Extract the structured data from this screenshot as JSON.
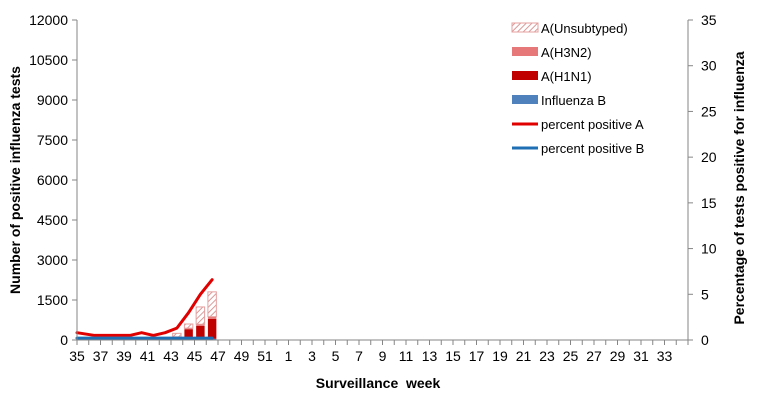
{
  "chart_data": {
    "type": "bar",
    "subtype": "stacked bar with dual-axis line overlay",
    "title": "",
    "xlabel": "Surveillance  week",
    "ylabel": "Number of positive influenza tests",
    "y2label": "Percentage of tests positive for influenza",
    "ylim": [
      0,
      12000
    ],
    "y2lim": [
      0,
      35
    ],
    "yticks": [
      0,
      1500,
      3000,
      4500,
      6000,
      7500,
      9000,
      10500,
      12000
    ],
    "y2ticks": [
      0,
      5,
      10,
      15,
      20,
      25,
      30,
      35
    ],
    "grid": false,
    "legend_position": "upper right, inside plot",
    "categories": [
      35,
      36,
      37,
      38,
      39,
      40,
      41,
      42,
      43,
      44,
      45,
      46,
      47,
      48,
      49,
      50,
      51,
      52,
      1,
      2,
      3,
      4,
      5,
      6,
      7,
      8,
      9,
      10,
      11,
      12,
      13,
      14,
      15,
      16,
      17,
      18,
      19,
      20,
      21,
      22,
      23,
      24,
      25,
      26,
      27,
      28,
      29,
      30,
      31,
      32,
      33,
      34
    ],
    "xtick_labels": [
      "35",
      "37",
      "39",
      "41",
      "43",
      "45",
      "47",
      "49",
      "51",
      "1",
      "3",
      "5",
      "7",
      "9",
      "11",
      "13",
      "15",
      "17",
      "19",
      "21",
      "23",
      "25",
      "27",
      "29",
      "31",
      "33"
    ],
    "series": [
      {
        "name": "Influenza B",
        "kind": "bar",
        "color": "#4f81bd",
        "axis": "left",
        "values": [
          20,
          15,
          15,
          15,
          15,
          20,
          20,
          25,
          30,
          35,
          40,
          45,
          null,
          null,
          null,
          null,
          null,
          null,
          null,
          null,
          null,
          null,
          null,
          null,
          null,
          null,
          null,
          null,
          null,
          null,
          null,
          null,
          null,
          null,
          null,
          null,
          null,
          null,
          null,
          null,
          null,
          null,
          null,
          null,
          null,
          null,
          null,
          null,
          null,
          null,
          null,
          null
        ]
      },
      {
        "name": "A(H1N1)",
        "kind": "bar",
        "color": "#c00000",
        "axis": "left",
        "values": [
          5,
          5,
          5,
          5,
          5,
          10,
          10,
          20,
          60,
          370,
          490,
          750,
          null,
          null,
          null,
          null,
          null,
          null,
          null,
          null,
          null,
          null,
          null,
          null,
          null,
          null,
          null,
          null,
          null,
          null,
          null,
          null,
          null,
          null,
          null,
          null,
          null,
          null,
          null,
          null,
          null,
          null,
          null,
          null,
          null,
          null,
          null,
          null,
          null,
          null,
          null,
          null
        ]
      },
      {
        "name": "A(H3N2)",
        "kind": "bar",
        "color": "#e6787a",
        "axis": "left",
        "values": [
          5,
          5,
          5,
          5,
          5,
          5,
          5,
          10,
          30,
          40,
          60,
          80,
          null,
          null,
          null,
          null,
          null,
          null,
          null,
          null,
          null,
          null,
          null,
          null,
          null,
          null,
          null,
          null,
          null,
          null,
          null,
          null,
          null,
          null,
          null,
          null,
          null,
          null,
          null,
          null,
          null,
          null,
          null,
          null,
          null,
          null,
          null,
          null,
          null,
          null,
          null,
          null
        ]
      },
      {
        "name": "A(Unsubtyped)",
        "kind": "bar",
        "color": "#e8b4b4",
        "pattern": "hatched",
        "axis": "left",
        "values": [
          20,
          15,
          15,
          15,
          15,
          20,
          20,
          30,
          130,
          155,
          650,
          930,
          null,
          null,
          null,
          null,
          null,
          null,
          null,
          null,
          null,
          null,
          null,
          null,
          null,
          null,
          null,
          null,
          null,
          null,
          null,
          null,
          null,
          null,
          null,
          null,
          null,
          null,
          null,
          null,
          null,
          null,
          null,
          null,
          null,
          null,
          null,
          null,
          null,
          null,
          null,
          null
        ]
      },
      {
        "name": "percent positive A",
        "kind": "line",
        "color": "#e00000",
        "axis": "right",
        "values": [
          0.8,
          0.5,
          0.5,
          0.5,
          0.5,
          0.8,
          0.5,
          0.8,
          1.3,
          3.0,
          5.0,
          6.6,
          null,
          null,
          null,
          null,
          null,
          null,
          null,
          null,
          null,
          null,
          null,
          null,
          null,
          null,
          null,
          null,
          null,
          null,
          null,
          null,
          null,
          null,
          null,
          null,
          null,
          null,
          null,
          null,
          null,
          null,
          null,
          null,
          null,
          null,
          null,
          null,
          null,
          null,
          null,
          null
        ]
      },
      {
        "name": "percent positive B",
        "kind": "line",
        "color": "#1f6fb4",
        "axis": "right",
        "values": [
          0.2,
          0.2,
          0.2,
          0.2,
          0.2,
          0.2,
          0.2,
          0.2,
          0.2,
          0.2,
          0.2,
          0.2,
          null,
          null,
          null,
          null,
          null,
          null,
          null,
          null,
          null,
          null,
          null,
          null,
          null,
          null,
          null,
          null,
          null,
          null,
          null,
          null,
          null,
          null,
          null,
          null,
          null,
          null,
          null,
          null,
          null,
          null,
          null,
          null,
          null,
          null,
          null,
          null,
          null,
          null,
          null,
          null
        ]
      }
    ],
    "legend": [
      {
        "label": "A(Unsubtyped)",
        "swatch": "hatched",
        "color": "#e8b4b4"
      },
      {
        "label": "A(H3N2)",
        "swatch": "box",
        "color": "#e6787a"
      },
      {
        "label": "A(H1N1)",
        "swatch": "box",
        "color": "#c00000"
      },
      {
        "label": "Influenza B",
        "swatch": "box",
        "color": "#4f81bd"
      },
      {
        "label": "percent positive A",
        "swatch": "line",
        "color": "#e00000"
      },
      {
        "label": "percent positive B",
        "swatch": "line",
        "color": "#1f6fb4"
      }
    ]
  }
}
